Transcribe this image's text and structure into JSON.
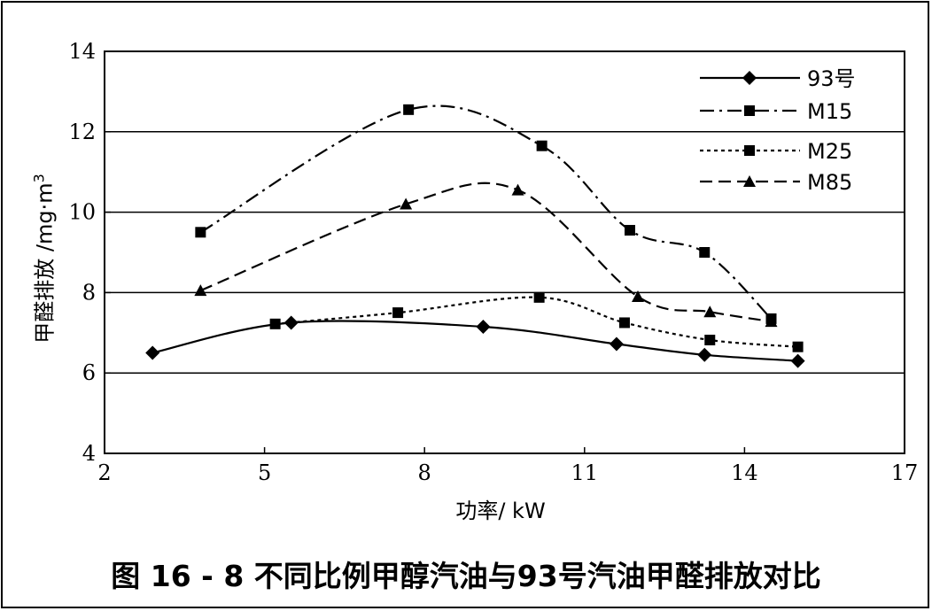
{
  "caption": "图 16 - 8    不同比例甲醇汽油与93号汽油甲醛排放对比",
  "chart_data": {
    "type": "line",
    "xlabel": "功率/ kW",
    "ylabel_main": "甲醛排放 /mg·m",
    "ylabel_sup": "3",
    "xlim": [
      2,
      17
    ],
    "ylim": [
      4,
      14
    ],
    "xticks": [
      2,
      5,
      8,
      11,
      14,
      17
    ],
    "yticks": [
      4,
      6,
      8,
      10,
      12,
      14
    ],
    "grid": "horizontal",
    "legend_position": "top-right",
    "series": [
      {
        "name": "93号",
        "marker": "diamond",
        "line_style": "solid",
        "points": [
          [
            2.9,
            6.5
          ],
          [
            5.5,
            7.25
          ],
          [
            9.1,
            7.15
          ],
          [
            11.6,
            6.72
          ],
          [
            13.25,
            6.45
          ],
          [
            15.0,
            6.3
          ]
        ]
      },
      {
        "name": "M15",
        "marker": "square",
        "line_style": "dash-dot",
        "points": [
          [
            3.8,
            9.5
          ],
          [
            7.7,
            12.55
          ],
          [
            10.2,
            11.65
          ],
          [
            11.85,
            9.55
          ],
          [
            13.25,
            9.0
          ],
          [
            14.5,
            7.35
          ]
        ]
      },
      {
        "name": "M25",
        "marker": "square",
        "line_style": "dotted",
        "points": [
          [
            5.2,
            7.22
          ],
          [
            7.5,
            7.5
          ],
          [
            10.15,
            7.88
          ],
          [
            11.75,
            7.25
          ],
          [
            13.35,
            6.82
          ],
          [
            15.0,
            6.65
          ]
        ]
      },
      {
        "name": "M85",
        "marker": "triangle",
        "line_style": "dashed",
        "points": [
          [
            3.8,
            8.05
          ],
          [
            7.65,
            10.2
          ],
          [
            9.75,
            10.55
          ],
          [
            12.0,
            7.9
          ],
          [
            13.35,
            7.52
          ],
          [
            14.5,
            7.28
          ]
        ]
      }
    ]
  }
}
